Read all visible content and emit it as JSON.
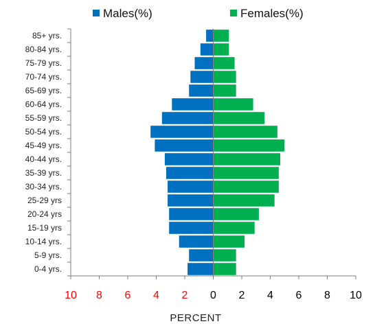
{
  "chart_data": {
    "type": "bar",
    "orientation": "horizontal-diverging",
    "title": "",
    "xlabel": "PERCENT",
    "ylabel": "",
    "categories": [
      "0-4 yrs.",
      "5-9 yrs.",
      "10-14 yrs.",
      "15-19 yrs",
      "20-24 yrs",
      "25-29 yrs",
      "30-34 yrs.",
      "35-39 yrs.",
      "40-44 yrs.",
      "45-49 yrs.",
      "50-54 yrs.",
      "55-59 yrs.",
      "60-64 yrs.",
      "65-69 yrs.",
      "70-74 yrs.",
      "75-79 yrs.",
      "80-84 yrs.",
      "85+ yrs."
    ],
    "series": [
      {
        "name": "Males(%)",
        "color": "#0070c0",
        "direction": "left",
        "values": [
          1.8,
          1.7,
          2.4,
          3.1,
          3.1,
          3.2,
          3.2,
          3.3,
          3.4,
          4.1,
          4.4,
          3.6,
          2.9,
          1.7,
          1.6,
          1.3,
          0.9,
          0.5
        ]
      },
      {
        "name": "Females(%)",
        "color": "#00b050",
        "direction": "right",
        "values": [
          1.6,
          1.6,
          2.2,
          2.9,
          3.2,
          4.3,
          4.6,
          4.6,
          4.7,
          5.0,
          4.5,
          3.6,
          2.8,
          1.6,
          1.6,
          1.5,
          1.1,
          1.1
        ]
      }
    ],
    "xlim": [
      -10,
      10
    ],
    "xticks": [
      {
        "label": "10",
        "color": "#ff0000"
      },
      {
        "label": "8",
        "color": "#ff0000"
      },
      {
        "label": "6",
        "color": "#ff0000"
      },
      {
        "label": "4",
        "color": "#ff0000"
      },
      {
        "label": "2",
        "color": "#ff0000"
      },
      {
        "label": "0",
        "color": "#000000"
      },
      {
        "label": "2",
        "color": "#000000"
      },
      {
        "label": "4",
        "color": "#000000"
      },
      {
        "label": "6",
        "color": "#000000"
      },
      {
        "label": "8",
        "color": "#000000"
      },
      {
        "label": "10",
        "color": "#000000"
      }
    ],
    "legend": {
      "position": "top",
      "entries": [
        "Males(%)",
        "Females(%)"
      ]
    },
    "grid": false
  }
}
